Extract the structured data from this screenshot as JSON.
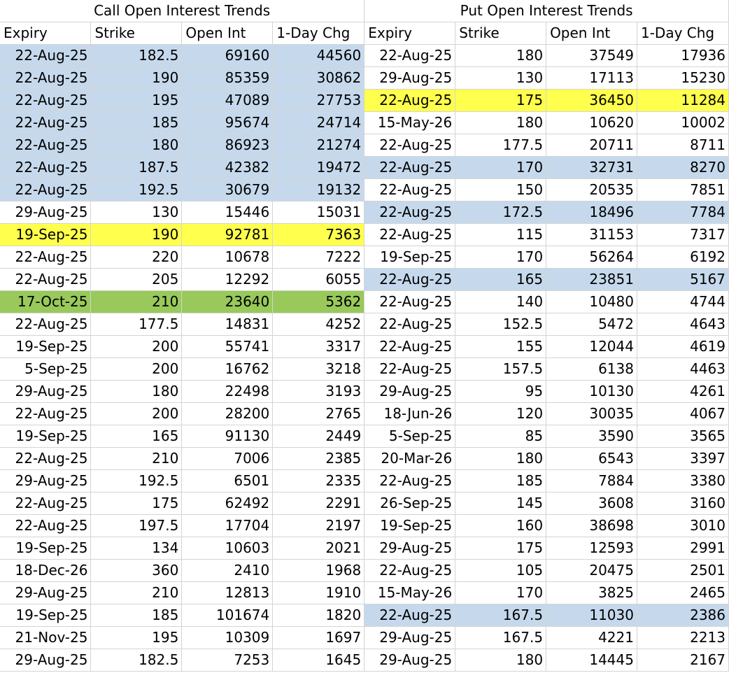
{
  "call": {
    "title": "Call Open Interest Trends",
    "headers": [
      "Expiry",
      "Strike",
      "Open Int",
      "1-Day Chg"
    ],
    "rows": [
      {
        "expiry": "22-Aug-25",
        "strike": "182.5",
        "oi": "69160",
        "chg": "44560",
        "hl": "blue"
      },
      {
        "expiry": "22-Aug-25",
        "strike": "190",
        "oi": "85359",
        "chg": "30862",
        "hl": "blue"
      },
      {
        "expiry": "22-Aug-25",
        "strike": "195",
        "oi": "47089",
        "chg": "27753",
        "hl": "blue"
      },
      {
        "expiry": "22-Aug-25",
        "strike": "185",
        "oi": "95674",
        "chg": "24714",
        "hl": "blue"
      },
      {
        "expiry": "22-Aug-25",
        "strike": "180",
        "oi": "86923",
        "chg": "21274",
        "hl": "blue"
      },
      {
        "expiry": "22-Aug-25",
        "strike": "187.5",
        "oi": "42382",
        "chg": "19472",
        "hl": "blue"
      },
      {
        "expiry": "22-Aug-25",
        "strike": "192.5",
        "oi": "30679",
        "chg": "19132",
        "hl": "blue"
      },
      {
        "expiry": "29-Aug-25",
        "strike": "130",
        "oi": "15446",
        "chg": "15031",
        "hl": ""
      },
      {
        "expiry": "19-Sep-25",
        "strike": "190",
        "oi": "92781",
        "chg": "7363",
        "hl": "yellow"
      },
      {
        "expiry": "22-Aug-25",
        "strike": "220",
        "oi": "10678",
        "chg": "7222",
        "hl": ""
      },
      {
        "expiry": "22-Aug-25",
        "strike": "205",
        "oi": "12292",
        "chg": "6055",
        "hl": ""
      },
      {
        "expiry": "17-Oct-25",
        "strike": "210",
        "oi": "23640",
        "chg": "5362",
        "hl": "green"
      },
      {
        "expiry": "22-Aug-25",
        "strike": "177.5",
        "oi": "14831",
        "chg": "4252",
        "hl": ""
      },
      {
        "expiry": "19-Sep-25",
        "strike": "200",
        "oi": "55741",
        "chg": "3317",
        "hl": ""
      },
      {
        "expiry": "5-Sep-25",
        "strike": "200",
        "oi": "16762",
        "chg": "3218",
        "hl": ""
      },
      {
        "expiry": "29-Aug-25",
        "strike": "180",
        "oi": "22498",
        "chg": "3193",
        "hl": ""
      },
      {
        "expiry": "22-Aug-25",
        "strike": "200",
        "oi": "28200",
        "chg": "2765",
        "hl": ""
      },
      {
        "expiry": "19-Sep-25",
        "strike": "165",
        "oi": "91130",
        "chg": "2449",
        "hl": ""
      },
      {
        "expiry": "22-Aug-25",
        "strike": "210",
        "oi": "7006",
        "chg": "2385",
        "hl": ""
      },
      {
        "expiry": "29-Aug-25",
        "strike": "192.5",
        "oi": "6501",
        "chg": "2335",
        "hl": ""
      },
      {
        "expiry": "22-Aug-25",
        "strike": "175",
        "oi": "62492",
        "chg": "2291",
        "hl": ""
      },
      {
        "expiry": "22-Aug-25",
        "strike": "197.5",
        "oi": "17704",
        "chg": "2197",
        "hl": ""
      },
      {
        "expiry": "19-Sep-25",
        "strike": "134",
        "oi": "10603",
        "chg": "2021",
        "hl": ""
      },
      {
        "expiry": "18-Dec-26",
        "strike": "360",
        "oi": "2410",
        "chg": "1968",
        "hl": ""
      },
      {
        "expiry": "29-Aug-25",
        "strike": "210",
        "oi": "12813",
        "chg": "1910",
        "hl": ""
      },
      {
        "expiry": "19-Sep-25",
        "strike": "185",
        "oi": "101674",
        "chg": "1820",
        "hl": ""
      },
      {
        "expiry": "21-Nov-25",
        "strike": "195",
        "oi": "10309",
        "chg": "1697",
        "hl": ""
      },
      {
        "expiry": "29-Aug-25",
        "strike": "182.5",
        "oi": "7253",
        "chg": "1645",
        "hl": ""
      }
    ]
  },
  "put": {
    "title": "Put Open Interest Trends",
    "headers": [
      "Expiry",
      "Strike",
      "Open Int",
      "1-Day Chg"
    ],
    "rows": [
      {
        "expiry": "22-Aug-25",
        "strike": "180",
        "oi": "37549",
        "chg": "17936",
        "hl": ""
      },
      {
        "expiry": "29-Aug-25",
        "strike": "130",
        "oi": "17113",
        "chg": "15230",
        "hl": ""
      },
      {
        "expiry": "22-Aug-25",
        "strike": "175",
        "oi": "36450",
        "chg": "11284",
        "hl": "yellow"
      },
      {
        "expiry": "15-May-26",
        "strike": "180",
        "oi": "10620",
        "chg": "10002",
        "hl": ""
      },
      {
        "expiry": "22-Aug-25",
        "strike": "177.5",
        "oi": "20711",
        "chg": "8711",
        "hl": ""
      },
      {
        "expiry": "22-Aug-25",
        "strike": "170",
        "oi": "32731",
        "chg": "8270",
        "hl": "blue"
      },
      {
        "expiry": "22-Aug-25",
        "strike": "150",
        "oi": "20535",
        "chg": "7851",
        "hl": ""
      },
      {
        "expiry": "22-Aug-25",
        "strike": "172.5",
        "oi": "18496",
        "chg": "7784",
        "hl": "blue"
      },
      {
        "expiry": "22-Aug-25",
        "strike": "115",
        "oi": "31153",
        "chg": "7317",
        "hl": ""
      },
      {
        "expiry": "19-Sep-25",
        "strike": "170",
        "oi": "56264",
        "chg": "6192",
        "hl": ""
      },
      {
        "expiry": "22-Aug-25",
        "strike": "165",
        "oi": "23851",
        "chg": "5167",
        "hl": "blue"
      },
      {
        "expiry": "22-Aug-25",
        "strike": "140",
        "oi": "10480",
        "chg": "4744",
        "hl": ""
      },
      {
        "expiry": "22-Aug-25",
        "strike": "152.5",
        "oi": "5472",
        "chg": "4643",
        "hl": ""
      },
      {
        "expiry": "22-Aug-25",
        "strike": "155",
        "oi": "12044",
        "chg": "4619",
        "hl": ""
      },
      {
        "expiry": "22-Aug-25",
        "strike": "157.5",
        "oi": "6138",
        "chg": "4463",
        "hl": ""
      },
      {
        "expiry": "29-Aug-25",
        "strike": "95",
        "oi": "10130",
        "chg": "4261",
        "hl": ""
      },
      {
        "expiry": "18-Jun-26",
        "strike": "120",
        "oi": "30035",
        "chg": "4067",
        "hl": ""
      },
      {
        "expiry": "5-Sep-25",
        "strike": "85",
        "oi": "3590",
        "chg": "3565",
        "hl": ""
      },
      {
        "expiry": "20-Mar-26",
        "strike": "180",
        "oi": "6543",
        "chg": "3397",
        "hl": ""
      },
      {
        "expiry": "22-Aug-25",
        "strike": "185",
        "oi": "7884",
        "chg": "3380",
        "hl": ""
      },
      {
        "expiry": "26-Sep-25",
        "strike": "145",
        "oi": "3608",
        "chg": "3160",
        "hl": ""
      },
      {
        "expiry": "19-Sep-25",
        "strike": "160",
        "oi": "38698",
        "chg": "3010",
        "hl": ""
      },
      {
        "expiry": "29-Aug-25",
        "strike": "175",
        "oi": "12593",
        "chg": "2991",
        "hl": ""
      },
      {
        "expiry": "22-Aug-25",
        "strike": "105",
        "oi": "20475",
        "chg": "2501",
        "hl": ""
      },
      {
        "expiry": "15-May-26",
        "strike": "170",
        "oi": "3825",
        "chg": "2465",
        "hl": ""
      },
      {
        "expiry": "22-Aug-25",
        "strike": "167.5",
        "oi": "11030",
        "chg": "2386",
        "hl": "blue"
      },
      {
        "expiry": "29-Aug-25",
        "strike": "167.5",
        "oi": "4221",
        "chg": "2213",
        "hl": ""
      },
      {
        "expiry": "29-Aug-25",
        "strike": "180",
        "oi": "14445",
        "chg": "2167",
        "hl": ""
      }
    ]
  },
  "colors": {
    "blue": "#c6d9ec",
    "yellow": "#ffff4d",
    "green": "#98c95a",
    "gridline": "#d4d4d4"
  }
}
